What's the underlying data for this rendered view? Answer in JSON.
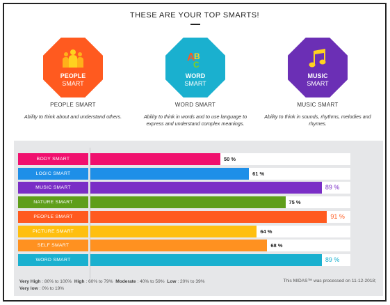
{
  "header": {
    "title": "THESE ARE YOUR TOP SMARTS!"
  },
  "top_smarts": [
    {
      "line1": "PEOPLE",
      "line2": "SMART",
      "name": "PEOPLE SMART",
      "description": "Ability to think about and understand others.",
      "color": "#ff5a1f",
      "icon": "people-icon"
    },
    {
      "line1": "WORD",
      "line2": "SMART",
      "name": "WORD SMART",
      "description": "Ability to think in words and to use language to express and understand complex meanings.",
      "color": "#1ab0cf",
      "icon": "letters-icon"
    },
    {
      "line1": "MUSIC",
      "line2": "SMART",
      "name": "MUSIC SMART",
      "description": "Ability to think in sounds, rhythms, melodies and rhymes.",
      "color": "#6b2fb5",
      "icon": "music-note-icon"
    }
  ],
  "chart_data": {
    "type": "bar",
    "orientation": "horizontal",
    "categories": [
      "BODY SMART",
      "LOGIC SMART",
      "MUSIC SMART",
      "NATURE SMART",
      "PEOPLE SMART",
      "PICTURE SMART",
      "SELF SMART",
      "WORD SMART"
    ],
    "values": [
      50,
      61,
      89,
      75,
      91,
      64,
      68,
      89
    ],
    "value_labels": [
      "50 %",
      "61 %",
      "89 %",
      "75 %",
      "91 %",
      "64 %",
      "68 %",
      "89 %"
    ],
    "colors": [
      "#f0106e",
      "#1e8fe8",
      "#7a2ec6",
      "#5f9e1a",
      "#ff5a1f",
      "#ffbf0f",
      "#ff9120",
      "#1ab0cf"
    ],
    "highlighted": [
      false,
      false,
      true,
      false,
      true,
      false,
      false,
      true
    ],
    "xlim": [
      0,
      100
    ]
  },
  "legend": {
    "very_high_label": "Very High",
    "very_high_range": ": 80% to 100%",
    "high_label": "High",
    "high_range": ": 60% to 79%",
    "moderate_label": "Moderate",
    "moderate_range": ": 40% to 59%",
    "low_label": "Low",
    "low_range": ": 20% to 39%",
    "very_low_label": "Very low",
    "very_low_range": ": 0% to 19%"
  },
  "footer": {
    "processed_note": "This MIDAS™ was processed on 11-12-2018;"
  }
}
